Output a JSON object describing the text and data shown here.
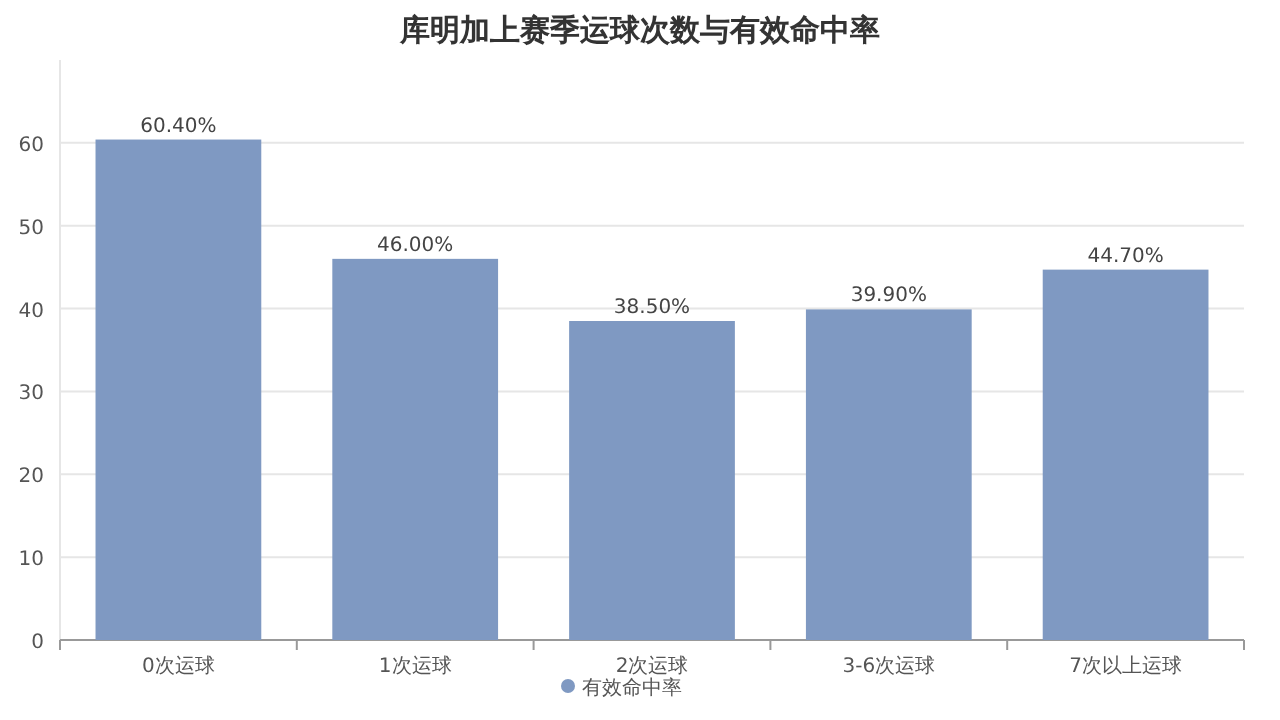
{
  "chart_data": {
    "type": "bar",
    "title": "库明加上赛季运球次数与有效命中率",
    "categories": [
      "0次运球",
      "1次运球",
      "2次运球",
      "3-6次运球",
      "7次以上运球"
    ],
    "series": [
      {
        "name": "有效命中率",
        "color": "#7f99c2",
        "values": [
          60.4,
          46.0,
          38.5,
          39.9,
          44.7
        ],
        "value_labels": [
          "60.40%",
          "46.00%",
          "38.50%",
          "39.90%",
          "44.70%"
        ]
      }
    ],
    "ylim": [
      0,
      70
    ],
    "yticks": [
      0,
      10,
      20,
      30,
      40,
      50,
      60
    ],
    "grid": "y",
    "legend": "bottom"
  }
}
